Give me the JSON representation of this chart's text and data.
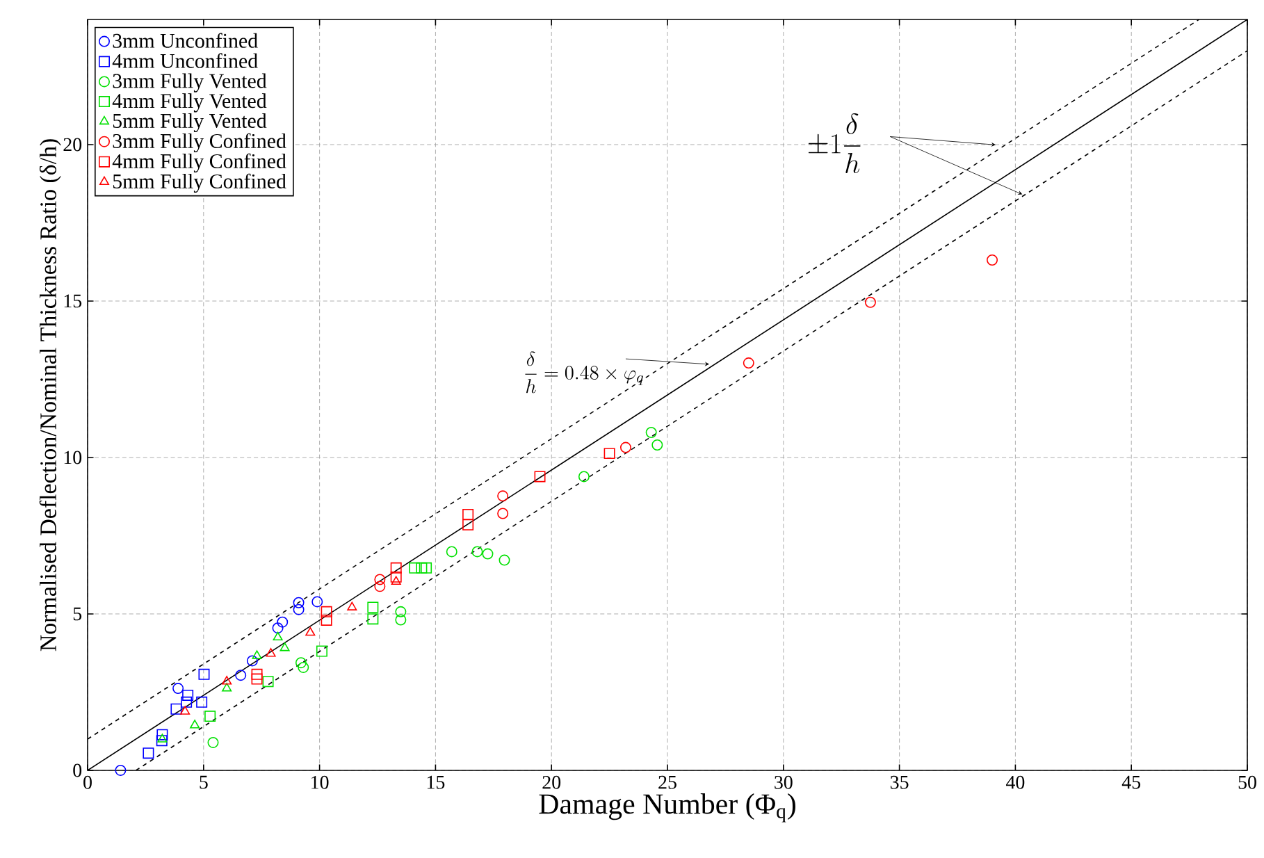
{
  "chart_data": {
    "type": "scatter",
    "xlabel": "Damage Number (Φ$_{q}$)",
    "ylabel": "Normalised Deflection/Nominal Thickness Ratio (δ/h)",
    "xlim": [
      0,
      50
    ],
    "ylim": [
      0,
      24
    ],
    "xticks": [
      0,
      5,
      10,
      15,
      20,
      25,
      30,
      35,
      40,
      45,
      50
    ],
    "yticks": [
      0,
      5,
      10,
      15,
      20
    ],
    "grid": true,
    "legend": "top left",
    "annotations": [
      "\\pm 1\\dfrac{\\delta}{h}",
      {
        "text": "\\dfrac{\\delta}{h} = 0.48\\times\\varphi_{q}",
        "x": 26.8,
        "y": 12.98
      }
    ],
    "series": [
      {
        "name": "3mm Unconfined",
        "color": "#0000ff",
        "marker": "circle",
        "x": [
          1.42,
          3.9,
          6.6,
          7.1,
          8.2,
          8.4,
          9.1,
          9.1,
          9.9
        ],
        "values": [
          0,
          2.62,
          3.04,
          3.5,
          4.55,
          4.74,
          5.36,
          5.14,
          5.39
        ]
      },
      {
        "name": "4mm  Unconfined",
        "color": "#0000ff",
        "marker": "square",
        "x": [
          2.62,
          3.22,
          3.2,
          3.82,
          4.32,
          4.26,
          5.02,
          4.92
        ],
        "values": [
          0.55,
          1.14,
          0.95,
          1.96,
          2.4,
          2.18,
          3.07,
          2.18
        ]
      },
      {
        "name": "3mm Fully Vented",
        "color": "#00e000",
        "marker": "circle",
        "x": [
          5.41,
          9.2,
          9.3,
          13.5,
          13.5,
          15.7,
          16.8,
          17.25,
          17.97,
          21.4,
          24.3,
          24.56
        ],
        "values": [
          0.89,
          3.44,
          3.29,
          5.07,
          4.81,
          6.99,
          6.99,
          6.92,
          6.72,
          9.39,
          10.8,
          10.4
        ]
      },
      {
        "name": "4mm Fully Vented",
        "color": "#00e000",
        "marker": "square",
        "x": [
          5.28,
          7.78,
          10.1,
          12.3,
          12.3,
          14.1,
          14.4,
          14.6
        ],
        "values": [
          1.73,
          2.84,
          3.81,
          5.21,
          4.84,
          6.47,
          6.47,
          6.47
        ]
      },
      {
        "name": "5mm Fully Vented",
        "color": "#00e000",
        "marker": "triangle",
        "x": [
          3.22,
          4.62,
          6.0,
          7.3,
          8.2,
          8.5
        ],
        "values": [
          0.99,
          1.44,
          2.62,
          3.66,
          4.25,
          3.91
        ]
      },
      {
        "name": "3mm Fully Confined",
        "color": "#ff0000",
        "marker": "circle",
        "x": [
          12.6,
          12.6,
          17.9,
          17.9,
          23.2,
          28.5,
          33.75,
          39.0
        ],
        "values": [
          6.1,
          5.88,
          8.77,
          8.21,
          10.32,
          13.02,
          14.96,
          16.31
        ]
      },
      {
        "name": "4mm Fully Confined",
        "color": "#ff0000",
        "marker": "square",
        "x": [
          7.3,
          7.3,
          10.3,
          10.3,
          13.3,
          13.3,
          16.4,
          16.4,
          19.5,
          22.5
        ],
        "values": [
          3.07,
          2.92,
          5.07,
          4.8,
          6.47,
          6.18,
          8.18,
          7.85,
          9.39,
          10.13
        ]
      },
      {
        "name": "5mm Fully Confined",
        "color": "#ff0000",
        "marker": "triangle",
        "x": [
          4.2,
          6.0,
          7.9,
          9.6,
          11.4,
          13.3
        ],
        "values": [
          1.88,
          2.84,
          3.73,
          4.4,
          5.21,
          6.03
        ]
      },
      {
        "type": "line",
        "color": "#000000",
        "line_style": "solid",
        "x": [
          0,
          50
        ],
        "values": [
          0,
          24
        ]
      },
      {
        "type": "line",
        "color": "#000000",
        "line_style": "dashed",
        "x": [
          0,
          47.92
        ],
        "values": [
          1,
          24
        ]
      },
      {
        "type": "line",
        "color": "#000000",
        "line_style": "dashed",
        "x": [
          2.083,
          50
        ],
        "values": [
          0,
          23
        ]
      }
    ]
  }
}
